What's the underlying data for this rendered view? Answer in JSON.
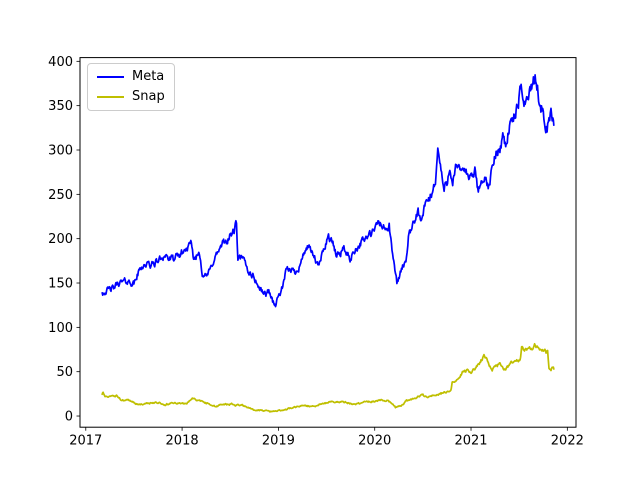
{
  "chart_data": {
    "type": "line",
    "title": "",
    "xlabel": "",
    "ylabel": "",
    "grid": false,
    "legend_position": "upper-left",
    "xlim": [
      2016.94,
      2022.09
    ],
    "ylim": [
      -12.6,
      404.2
    ],
    "x_ticks": [
      2017,
      2018,
      2019,
      2020,
      2021,
      2022
    ],
    "y_ticks": [
      0,
      50,
      100,
      150,
      200,
      250,
      300,
      350,
      400
    ],
    "noise": {
      "step": 0.006,
      "ar": 0.55,
      "base": 0.5,
      "scale": 0.016
    },
    "series": [
      {
        "name": "Meta",
        "color": "#0000ff",
        "seed": 42,
        "clamp_min": 122,
        "points": [
          [
            2017.17,
            139
          ],
          [
            2017.21,
            141
          ],
          [
            2017.25,
            143
          ],
          [
            2017.29,
            144
          ],
          [
            2017.33,
            150
          ],
          [
            2017.38,
            151
          ],
          [
            2017.42,
            152
          ],
          [
            2017.46,
            151
          ],
          [
            2017.5,
            149
          ],
          [
            2017.54,
            160
          ],
          [
            2017.58,
            169
          ],
          [
            2017.63,
            171
          ],
          [
            2017.67,
            170
          ],
          [
            2017.71,
            172
          ],
          [
            2017.75,
            175
          ],
          [
            2017.79,
            179
          ],
          [
            2017.83,
            182
          ],
          [
            2017.86,
            177
          ],
          [
            2017.92,
            177
          ],
          [
            2017.96,
            180
          ],
          [
            2018.0,
            184
          ],
          [
            2018.06,
            190
          ],
          [
            2018.09,
            193
          ],
          [
            2018.12,
            177
          ],
          [
            2018.15,
            180
          ],
          [
            2018.18,
            185
          ],
          [
            2018.21,
            162
          ],
          [
            2018.25,
            157
          ],
          [
            2018.29,
            164
          ],
          [
            2018.33,
            177
          ],
          [
            2018.38,
            186
          ],
          [
            2018.42,
            193
          ],
          [
            2018.46,
            197
          ],
          [
            2018.5,
            203
          ],
          [
            2018.54,
            209
          ],
          [
            2018.565,
            218
          ],
          [
            2018.58,
            175
          ],
          [
            2018.61,
            178
          ],
          [
            2018.65,
            174
          ],
          [
            2018.69,
            163
          ],
          [
            2018.73,
            159
          ],
          [
            2018.77,
            152
          ],
          [
            2018.79,
            146
          ],
          [
            2018.83,
            141
          ],
          [
            2018.87,
            137
          ],
          [
            2018.9,
            142
          ],
          [
            2018.94,
            130
          ],
          [
            2018.97,
            125
          ],
          [
            2019.0,
            135
          ],
          [
            2019.04,
            144
          ],
          [
            2019.08,
            163
          ],
          [
            2019.13,
            166
          ],
          [
            2019.17,
            162
          ],
          [
            2019.21,
            168
          ],
          [
            2019.25,
            178
          ],
          [
            2019.29,
            191
          ],
          [
            2019.33,
            187
          ],
          [
            2019.37,
            180
          ],
          [
            2019.41,
            168
          ],
          [
            2019.44,
            176
          ],
          [
            2019.48,
            192
          ],
          [
            2019.52,
            203
          ],
          [
            2019.56,
            196
          ],
          [
            2019.6,
            181
          ],
          [
            2019.64,
            184
          ],
          [
            2019.68,
            189
          ],
          [
            2019.71,
            183
          ],
          [
            2019.75,
            177
          ],
          [
            2019.79,
            187
          ],
          [
            2019.83,
            192
          ],
          [
            2019.87,
            197
          ],
          [
            2019.91,
            201
          ],
          [
            2019.96,
            205
          ],
          [
            2020.0,
            209
          ],
          [
            2020.04,
            220
          ],
          [
            2020.08,
            213
          ],
          [
            2020.12,
            211
          ],
          [
            2020.15,
            214
          ],
          [
            2020.18,
            186
          ],
          [
            2020.21,
            165
          ],
          [
            2020.23,
            151
          ],
          [
            2020.26,
            159
          ],
          [
            2020.29,
            168
          ],
          [
            2020.33,
            178
          ],
          [
            2020.35,
            202
          ],
          [
            2020.38,
            207
          ],
          [
            2020.42,
            222
          ],
          [
            2020.45,
            232
          ],
          [
            2020.48,
            217
          ],
          [
            2020.52,
            236
          ],
          [
            2020.56,
            244
          ],
          [
            2020.6,
            252
          ],
          [
            2020.63,
            266
          ],
          [
            2020.655,
            300
          ],
          [
            2020.67,
            291
          ],
          [
            2020.7,
            269
          ],
          [
            2020.72,
            254
          ],
          [
            2020.75,
            263
          ],
          [
            2020.78,
            282
          ],
          [
            2020.81,
            265
          ],
          [
            2020.84,
            279
          ],
          [
            2020.88,
            276
          ],
          [
            2020.92,
            281
          ],
          [
            2020.96,
            272
          ],
          [
            2021.0,
            267
          ],
          [
            2021.04,
            276
          ],
          [
            2021.07,
            254
          ],
          [
            2021.1,
            261
          ],
          [
            2021.13,
            271
          ],
          [
            2021.16,
            262
          ],
          [
            2021.19,
            258
          ],
          [
            2021.22,
            280
          ],
          [
            2021.26,
            296
          ],
          [
            2021.3,
            302
          ],
          [
            2021.33,
            316
          ],
          [
            2021.36,
            306
          ],
          [
            2021.4,
            327
          ],
          [
            2021.44,
            334
          ],
          [
            2021.48,
            347
          ],
          [
            2021.52,
            368
          ],
          [
            2021.55,
            356
          ],
          [
            2021.59,
            359
          ],
          [
            2021.63,
            373
          ],
          [
            2021.665,
            381
          ],
          [
            2021.69,
            370
          ],
          [
            2021.72,
            352
          ],
          [
            2021.75,
            341
          ],
          [
            2021.77,
            330
          ],
          [
            2021.79,
            324
          ],
          [
            2021.81,
            334
          ],
          [
            2021.83,
            342
          ],
          [
            2021.85,
            336
          ],
          [
            2021.86,
            328
          ]
        ]
      },
      {
        "name": "Snap",
        "color": "#bfbf00",
        "seed": 1337,
        "clamp_min": 4.6,
        "points": [
          [
            2017.17,
            24.5
          ],
          [
            2017.18,
            27
          ],
          [
            2017.2,
            22.5
          ],
          [
            2017.23,
            21.5
          ],
          [
            2017.25,
            22.5
          ],
          [
            2017.29,
            23
          ],
          [
            2017.33,
            22.5
          ],
          [
            2017.36,
            18.5
          ],
          [
            2017.4,
            17.8
          ],
          [
            2017.44,
            17.5
          ],
          [
            2017.48,
            16
          ],
          [
            2017.52,
            14
          ],
          [
            2017.56,
            13
          ],
          [
            2017.6,
            12.3
          ],
          [
            2017.64,
            14.3
          ],
          [
            2017.68,
            15
          ],
          [
            2017.72,
            15.2
          ],
          [
            2017.76,
            15.4
          ],
          [
            2017.79,
            13
          ],
          [
            2017.83,
            12.6
          ],
          [
            2017.87,
            14.3
          ],
          [
            2017.92,
            14.8
          ],
          [
            2017.96,
            14.3
          ],
          [
            2018.0,
            14
          ],
          [
            2018.05,
            13.8
          ],
          [
            2018.1,
            20.5
          ],
          [
            2018.13,
            19
          ],
          [
            2018.16,
            17.2
          ],
          [
            2018.2,
            16.3
          ],
          [
            2018.24,
            15
          ],
          [
            2018.28,
            14.3
          ],
          [
            2018.32,
            11.2
          ],
          [
            2018.36,
            10.9
          ],
          [
            2018.4,
            12.8
          ],
          [
            2018.44,
            13.3
          ],
          [
            2018.48,
            13.1
          ],
          [
            2018.52,
            13.6
          ],
          [
            2018.55,
            12.3
          ],
          [
            2018.59,
            12.5
          ],
          [
            2018.63,
            12.2
          ],
          [
            2018.67,
            9.8
          ],
          [
            2018.71,
            8.4
          ],
          [
            2018.75,
            7
          ],
          [
            2018.79,
            6.6
          ],
          [
            2018.83,
            6.3
          ],
          [
            2018.87,
            5.7
          ],
          [
            2018.91,
            5
          ],
          [
            2018.95,
            5.4
          ],
          [
            2019.0,
            5.9
          ],
          [
            2019.04,
            6.6
          ],
          [
            2019.08,
            7.2
          ],
          [
            2019.11,
            9
          ],
          [
            2019.15,
            9.6
          ],
          [
            2019.19,
            10.4
          ],
          [
            2019.23,
            11.2
          ],
          [
            2019.27,
            11.8
          ],
          [
            2019.31,
            11.2
          ],
          [
            2019.35,
            10.8
          ],
          [
            2019.39,
            11.6
          ],
          [
            2019.43,
            13.4
          ],
          [
            2019.47,
            14.3
          ],
          [
            2019.51,
            14.8
          ],
          [
            2019.55,
            16.8
          ],
          [
            2019.58,
            16.2
          ],
          [
            2019.62,
            15.6
          ],
          [
            2019.66,
            16.2
          ],
          [
            2019.7,
            15.4
          ],
          [
            2019.74,
            14.2
          ],
          [
            2019.78,
            13.2
          ],
          [
            2019.82,
            14.2
          ],
          [
            2019.86,
            15
          ],
          [
            2019.9,
            15.5
          ],
          [
            2019.95,
            16
          ],
          [
            2020.0,
            16.6
          ],
          [
            2020.04,
            17.8
          ],
          [
            2020.07,
            18.8
          ],
          [
            2020.1,
            16.8
          ],
          [
            2020.13,
            17.2
          ],
          [
            2020.16,
            15.5
          ],
          [
            2020.19,
            12.8
          ],
          [
            2020.215,
            9.5
          ],
          [
            2020.24,
            11.2
          ],
          [
            2020.27,
            11.8
          ],
          [
            2020.3,
            14
          ],
          [
            2020.33,
            17
          ],
          [
            2020.37,
            17.8
          ],
          [
            2020.41,
            19.5
          ],
          [
            2020.44,
            21.5
          ],
          [
            2020.47,
            23
          ],
          [
            2020.5,
            24
          ],
          [
            2020.53,
            22
          ],
          [
            2020.57,
            21.8
          ],
          [
            2020.61,
            22.6
          ],
          [
            2020.65,
            23.8
          ],
          [
            2020.69,
            25.2
          ],
          [
            2020.73,
            26.5
          ],
          [
            2020.77,
            28
          ],
          [
            2020.79,
            28.5
          ],
          [
            2020.805,
            37
          ],
          [
            2020.83,
            39.5
          ],
          [
            2020.87,
            43.5
          ],
          [
            2020.91,
            49
          ],
          [
            2020.95,
            51.5
          ],
          [
            2021.0,
            50
          ],
          [
            2021.04,
            53
          ],
          [
            2021.08,
            58
          ],
          [
            2021.11,
            63
          ],
          [
            2021.135,
            69.5
          ],
          [
            2021.16,
            66
          ],
          [
            2021.19,
            57
          ],
          [
            2021.22,
            51.5
          ],
          [
            2021.25,
            55.5
          ],
          [
            2021.29,
            59
          ],
          [
            2021.33,
            55
          ],
          [
            2021.36,
            51.5
          ],
          [
            2021.4,
            58
          ],
          [
            2021.44,
            62.5
          ],
          [
            2021.48,
            64
          ],
          [
            2021.51,
            63
          ],
          [
            2021.525,
            77
          ],
          [
            2021.55,
            74.5
          ],
          [
            2021.59,
            75.5
          ],
          [
            2021.63,
            77
          ],
          [
            2021.66,
            80.5
          ],
          [
            2021.675,
            79
          ],
          [
            2021.7,
            75
          ],
          [
            2021.73,
            73.5
          ],
          [
            2021.76,
            75.5
          ],
          [
            2021.78,
            72.5
          ],
          [
            2021.795,
            75.5
          ],
          [
            2021.81,
            55
          ],
          [
            2021.83,
            53
          ],
          [
            2021.85,
            55.5
          ],
          [
            2021.86,
            53
          ]
        ]
      }
    ]
  }
}
